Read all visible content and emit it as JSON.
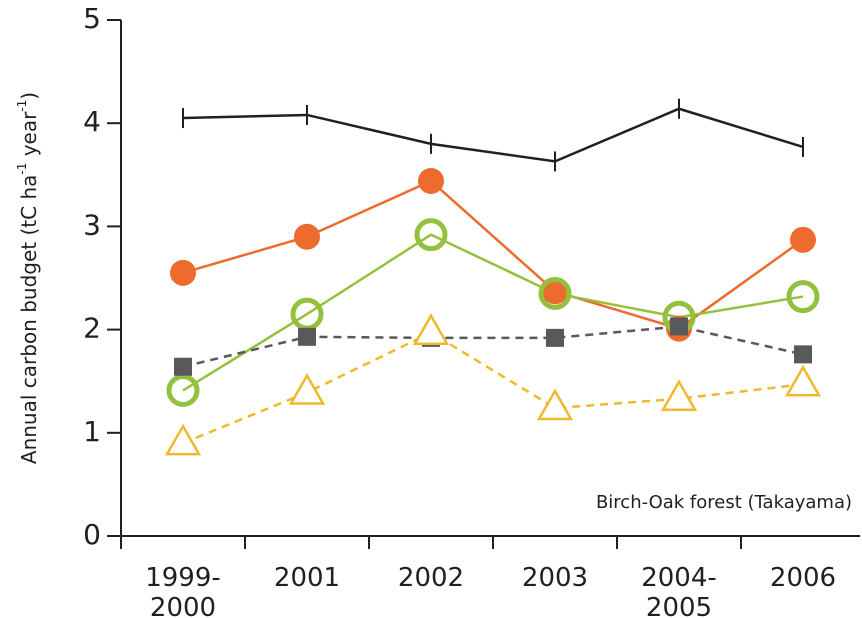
{
  "chart_data": {
    "type": "line",
    "ylabel_parts": [
      "Annual carbon budget (tC ha",
      "-1",
      " year",
      "-1",
      ")"
    ],
    "annotation": "Birch-Oak forest (Takayama)",
    "categories": [
      [
        "1999-",
        "2000"
      ],
      [
        "2001"
      ],
      [
        "2002"
      ],
      [
        "2003"
      ],
      [
        "2004-",
        "2005"
      ],
      [
        "2006"
      ]
    ],
    "ylim": [
      0,
      5
    ],
    "yticks": [
      0,
      1,
      2,
      3,
      4,
      5
    ],
    "series": [
      {
        "color": "#231f20",
        "marker": "plus",
        "dashed": false,
        "values": [
          4.05,
          4.08,
          3.8,
          3.63,
          4.14,
          3.77
        ]
      },
      {
        "color": "#ec6b2d",
        "marker": "circle",
        "dashed": false,
        "values": [
          2.55,
          2.9,
          3.44,
          2.37,
          2.01,
          2.87
        ]
      },
      {
        "color": "#94c13d",
        "marker": "open-circle",
        "dashed": false,
        "values": [
          1.41,
          2.15,
          2.92,
          2.35,
          2.12,
          2.32
        ]
      },
      {
        "color": "#58595b",
        "marker": "square",
        "dashed": true,
        "values": [
          1.64,
          1.93,
          1.92,
          1.92,
          2.03,
          1.76
        ]
      },
      {
        "color": "#f0b92c",
        "marker": "triangle",
        "dashed": true,
        "values": [
          0.9,
          1.39,
          1.97,
          1.24,
          1.33,
          1.47
        ]
      }
    ]
  }
}
